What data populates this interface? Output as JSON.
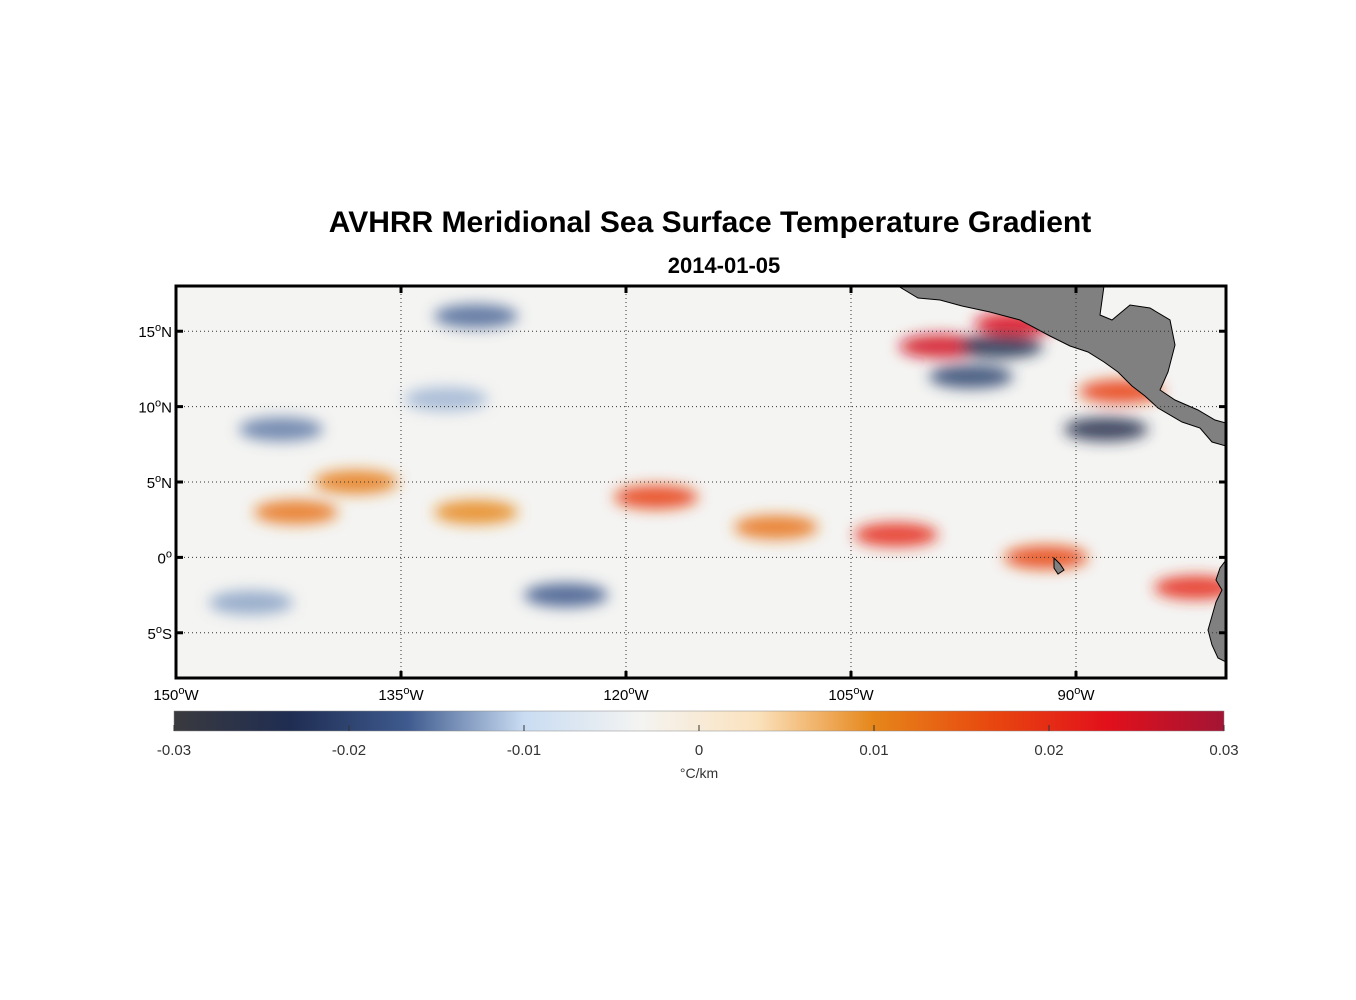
{
  "title": "AVHRR Meridional Sea Surface Temperature Gradient",
  "subtitle": "2014-01-05",
  "chart_data": {
    "type": "heatmap",
    "map": {
      "lon_range": [
        -150,
        -80
      ],
      "lat_range": [
        -8,
        18
      ],
      "grid": "dotted"
    },
    "lon_ticks": [
      {
        "value": -150,
        "deg": "150",
        "hemi": "W"
      },
      {
        "value": -135,
        "deg": "135",
        "hemi": "W"
      },
      {
        "value": -120,
        "deg": "120",
        "hemi": "W"
      },
      {
        "value": -105,
        "deg": "105",
        "hemi": "W"
      },
      {
        "value": -90,
        "deg": "90",
        "hemi": "W"
      }
    ],
    "lat_ticks": [
      {
        "value": 15,
        "deg": "15",
        "hemi": "N"
      },
      {
        "value": 10,
        "deg": "10",
        "hemi": "N"
      },
      {
        "value": 5,
        "deg": "5",
        "hemi": "N"
      },
      {
        "value": 0,
        "deg": "0",
        "hemi": ""
      },
      {
        "value": -5,
        "deg": "5",
        "hemi": "S"
      }
    ],
    "colorbar": {
      "range": [
        -0.03,
        0.03
      ],
      "ticks": [
        {
          "value": -0.03,
          "label": "-0.03"
        },
        {
          "value": -0.02,
          "label": "-0.02"
        },
        {
          "value": -0.01,
          "label": "-0.01"
        },
        {
          "value": 0,
          "label": "0"
        },
        {
          "value": 0.01,
          "label": "0.01"
        },
        {
          "value": 0.02,
          "label": "0.02"
        },
        {
          "value": 0.03,
          "label": "0.03"
        }
      ],
      "unit": "°C/km",
      "colors": [
        "#3a3a3e",
        "#1f2d52",
        "#3e5a8e",
        "#c9dcf2",
        "#f4f4f2",
        "#fbe2bd",
        "#e6861a",
        "#e8480f",
        "#e2101b",
        "#a31434"
      ]
    },
    "features": [
      {
        "lon": -142,
        "lat": 3,
        "value": 0.012
      },
      {
        "lon": -138,
        "lat": 5,
        "value": 0.011
      },
      {
        "lon": -130,
        "lat": 3,
        "value": 0.01
      },
      {
        "lon": -118,
        "lat": 4,
        "value": 0.018
      },
      {
        "lon": -110,
        "lat": 2,
        "value": 0.012
      },
      {
        "lon": -102,
        "lat": 1.5,
        "value": 0.02
      },
      {
        "lon": -92,
        "lat": 0,
        "value": 0.017
      },
      {
        "lon": -99,
        "lat": 14,
        "value": 0.025
      },
      {
        "lon": -94,
        "lat": 15.5,
        "value": 0.024
      },
      {
        "lon": -87,
        "lat": 11,
        "value": 0.018
      },
      {
        "lon": -82,
        "lat": -2,
        "value": 0.02
      },
      {
        "lon": -143,
        "lat": 8.5,
        "value": -0.015
      },
      {
        "lon": -130,
        "lat": 16,
        "value": -0.016
      },
      {
        "lon": -132,
        "lat": 10.5,
        "value": -0.012
      },
      {
        "lon": -124,
        "lat": -2.5,
        "value": -0.017
      },
      {
        "lon": -97,
        "lat": 12,
        "value": -0.02
      },
      {
        "lon": -95,
        "lat": 14,
        "value": -0.024
      },
      {
        "lon": -88,
        "lat": 8.5,
        "value": -0.025
      },
      {
        "lon": -145,
        "lat": -3,
        "value": -0.013
      }
    ]
  }
}
